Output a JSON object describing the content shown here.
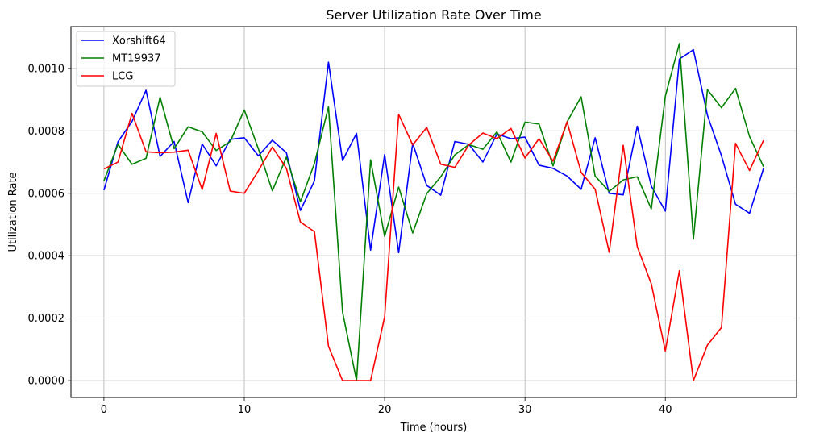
{
  "chart_data": {
    "type": "line",
    "title": "Server Utilization Rate Over Time",
    "xlabel": "Time (hours)",
    "ylabel": "Utilization Rate",
    "xlim": [
      -2.35,
      49.35
    ],
    "ylim": [
      -5.4e-05,
      0.001134
    ],
    "xticks": [
      0,
      10,
      20,
      30,
      40
    ],
    "xtick_labels": [
      "0",
      "10",
      "20",
      "30",
      "40"
    ],
    "yticks": [
      0,
      0.0002,
      0.0004,
      0.0006,
      0.0008,
      0.001
    ],
    "ytick_labels": [
      "0.0000",
      "0.0002",
      "0.0004",
      "0.0006",
      "0.0008",
      "0.0010"
    ],
    "grid": true,
    "legend_position": "top-left",
    "x": [
      0,
      1,
      2,
      3,
      4,
      5,
      6,
      7,
      8,
      9,
      10,
      11,
      12,
      13,
      14,
      15,
      16,
      17,
      18,
      19,
      20,
      21,
      22,
      23,
      24,
      25,
      26,
      27,
      28,
      29,
      30,
      31,
      32,
      33,
      34,
      35,
      36,
      37,
      38,
      39,
      40,
      41,
      42,
      43,
      44,
      45,
      46,
      47
    ],
    "series": [
      {
        "name": "Xorshift64",
        "color": "#0000ff",
        "values": [
          0.00061,
          0.000765,
          0.00083,
          0.00093,
          0.000718,
          0.000766,
          0.00057,
          0.000758,
          0.000688,
          0.000773,
          0.000778,
          0.00072,
          0.00077,
          0.00073,
          0.000545,
          0.00064,
          0.00102,
          0.000705,
          0.000792,
          0.000418,
          0.000724,
          0.00041,
          0.00076,
          0.000625,
          0.000594,
          0.000766,
          0.000757,
          0.0007,
          0.00079,
          0.000775,
          0.00078,
          0.00069,
          0.00068,
          0.000655,
          0.000613,
          0.000778,
          0.0006,
          0.000595,
          0.000815,
          0.000623,
          0.000543,
          0.00103,
          0.00106,
          0.00085,
          0.00072,
          0.000565,
          0.000536,
          0.00068
        ]
      },
      {
        "name": "MT19937",
        "color": "#008000",
        "values": [
          0.00064,
          0.000757,
          0.000693,
          0.000712,
          0.000908,
          0.000743,
          0.000813,
          0.000797,
          0.000737,
          0.000766,
          0.000867,
          0.000743,
          0.000608,
          0.000716,
          0.000573,
          0.000696,
          0.000877,
          0.00022,
          0.0,
          0.000707,
          0.000462,
          0.00062,
          0.000473,
          0.000599,
          0.000653,
          0.000723,
          0.000756,
          0.000741,
          0.000797,
          0.0007,
          0.000828,
          0.000822,
          0.000688,
          0.000829,
          0.000909,
          0.000655,
          0.000606,
          0.000643,
          0.000653,
          0.00055,
          0.000911,
          0.00108,
          0.000453,
          0.000932,
          0.000874,
          0.000936,
          0.000782,
          0.000685
        ]
      },
      {
        "name": "LCG",
        "color": "#ff0000",
        "values": [
          0.000678,
          0.0007,
          0.000856,
          0.000733,
          0.00073,
          0.000732,
          0.000738,
          0.000612,
          0.000792,
          0.000607,
          0.0006,
          0.000672,
          0.000748,
          0.00068,
          0.000508,
          0.000477,
          0.00011,
          0.0,
          0.0,
          0.0,
          0.000204,
          0.000853,
          0.000755,
          0.000811,
          0.000693,
          0.000683,
          0.000755,
          0.000793,
          0.000775,
          0.000808,
          0.000713,
          0.000775,
          0.000703,
          0.000829,
          0.000667,
          0.000613,
          0.000411,
          0.000754,
          0.000429,
          0.00031,
          9.5e-05,
          0.000352,
          0.0,
          0.000114,
          0.00017,
          0.00076,
          0.000673,
          0.00077
        ]
      }
    ]
  }
}
